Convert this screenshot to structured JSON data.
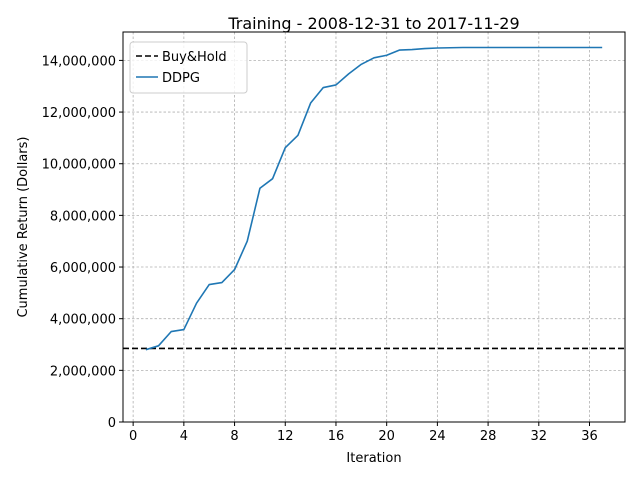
{
  "chart_data": {
    "type": "line",
    "title": "Training - 2008-12-31 to 2017-11-29",
    "xlabel": "Iteration",
    "ylabel": "Cumulative Return (Dollars)",
    "xlim": [
      -0.8,
      38.8
    ],
    "ylim": [
      0,
      15100000
    ],
    "x_ticks": [
      0,
      4,
      8,
      12,
      16,
      20,
      24,
      28,
      32,
      36
    ],
    "x_tick_labels": [
      "0",
      "4",
      "8",
      "12",
      "16",
      "20",
      "24",
      "28",
      "32",
      "36"
    ],
    "y_ticks": [
      0,
      2000000,
      4000000,
      6000000,
      8000000,
      10000000,
      12000000,
      14000000
    ],
    "y_tick_labels": [
      "0",
      "2,000,000",
      "4,000,000",
      "6,000,000",
      "8,000,000",
      "10,000,000",
      "12,000,000",
      "14,000,000"
    ],
    "grid": true,
    "legend_position": "top-left",
    "series": [
      {
        "name": "Buy&Hold",
        "style": "dashed",
        "color": "#000000",
        "x": [
          -0.8,
          38.8
        ],
        "values": [
          2850000,
          2850000
        ]
      },
      {
        "name": "DDPG",
        "style": "solid",
        "color": "#1f77b4",
        "x": [
          1,
          2,
          3,
          4,
          5,
          6,
          7,
          8,
          9,
          10,
          11,
          12,
          13,
          14,
          15,
          16,
          17,
          18,
          19,
          20,
          21,
          22,
          23,
          24,
          25,
          26,
          27,
          28,
          29,
          30,
          31,
          32,
          33,
          34,
          35,
          36,
          37
        ],
        "values": [
          2800000,
          2950000,
          3500000,
          3580000,
          4600000,
          5320000,
          5400000,
          5900000,
          7000000,
          9050000,
          9420000,
          10620000,
          11100000,
          12350000,
          12950000,
          13050000,
          13480000,
          13850000,
          14100000,
          14200000,
          14400000,
          14420000,
          14460000,
          14480000,
          14490000,
          14500000,
          14500000,
          14500000,
          14500000,
          14500000,
          14500000,
          14500000,
          14500000,
          14500000,
          14500000,
          14500000,
          14500000
        ]
      }
    ]
  }
}
